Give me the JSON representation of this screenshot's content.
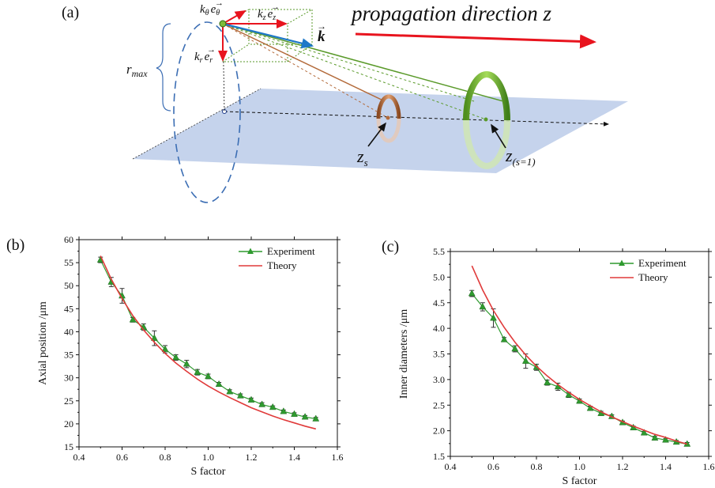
{
  "panel_a": {
    "label": "(a)",
    "propagation_text": "propagation direction z",
    "k_label": "k",
    "r_max_label": "r",
    "r_max_sub": "max",
    "k_theta_label": "k",
    "k_theta_sub": "θ",
    "e_theta_label": "e",
    "e_theta_sub": "θ",
    "k_z_label": "k",
    "k_z_sub": "z",
    "e_z_label": "e",
    "e_z_sub": "z",
    "k_r_label": "k",
    "k_r_sub": "r",
    "e_r_label": "e",
    "e_r_sub": "r",
    "z_s_label": "z",
    "z_s_sub": "s",
    "z_s1_label": "z",
    "z_s1_sub": "(s=1)",
    "colors": {
      "red": "#e8141e",
      "blue": "#1e78c8",
      "green": "#5a9a2a",
      "brown": "#b36a3a",
      "plane": "#c5d3ec",
      "dash_blue": "#3c6eb4"
    }
  },
  "chart_data": [
    {
      "panel_label": "(b)",
      "type": "line",
      "xlabel": "S factor",
      "ylabel": "Axial position /μm",
      "xlim": [
        0.4,
        1.6
      ],
      "ylim": [
        15,
        60
      ],
      "xticks": [
        0.4,
        0.6,
        0.8,
        1.0,
        1.2,
        1.4,
        1.6
      ],
      "xtick_labels": [
        "0.4",
        "0.6",
        "0.8",
        "1.0",
        "1.2",
        "1.4",
        "1.6"
      ],
      "yticks": [
        15,
        20,
        25,
        30,
        35,
        40,
        45,
        50,
        55,
        60
      ],
      "ytick_labels": [
        "15",
        "20",
        "25",
        "30",
        "35",
        "40",
        "45",
        "50",
        "55",
        "60"
      ],
      "legend_position": "top-right",
      "series": [
        {
          "name": "Experiment",
          "color": "#2f9a2f",
          "marker": "triangle",
          "x": [
            0.5,
            0.55,
            0.6,
            0.65,
            0.7,
            0.75,
            0.8,
            0.85,
            0.9,
            0.95,
            1.0,
            1.05,
            1.1,
            1.15,
            1.2,
            1.25,
            1.3,
            1.35,
            1.4,
            1.45,
            1.5
          ],
          "y": [
            55.6,
            50.8,
            47.8,
            42.6,
            41.0,
            38.6,
            36.2,
            34.4,
            33.0,
            31.2,
            30.3,
            28.6,
            27.0,
            26.1,
            25.2,
            24.2,
            23.6,
            22.7,
            22.1,
            21.5,
            21.1
          ],
          "err": [
            0.6,
            1.0,
            1.6,
            0.5,
            0.7,
            1.6,
            0.8,
            0.6,
            0.8,
            0.6,
            0.5,
            0.4,
            0.4,
            0.4,
            0.4,
            0.4,
            0.3,
            0.3,
            0.3,
            0.3,
            0.3
          ]
        },
        {
          "name": "Theory",
          "color": "#e03a3a",
          "x": [
            0.5,
            0.55,
            0.6,
            0.65,
            0.7,
            0.75,
            0.8,
            0.85,
            0.9,
            0.95,
            1.0,
            1.05,
            1.1,
            1.15,
            1.2,
            1.25,
            1.3,
            1.35,
            1.4,
            1.45,
            1.5
          ],
          "y": [
            56.5,
            51.4,
            47.2,
            43.5,
            40.4,
            37.7,
            35.3,
            33.2,
            31.4,
            29.7,
            28.2,
            26.9,
            25.7,
            24.6,
            23.5,
            22.6,
            21.7,
            20.9,
            20.2,
            19.5,
            18.9
          ]
        }
      ]
    },
    {
      "panel_label": "(c)",
      "type": "line",
      "xlabel": "S factor",
      "ylabel": "Inner diameters /μm",
      "xlim": [
        0.4,
        1.6
      ],
      "ylim": [
        1.5,
        5.5
      ],
      "xticks": [
        0.4,
        0.6,
        0.8,
        1.0,
        1.2,
        1.4,
        1.6
      ],
      "xtick_labels": [
        "0.4",
        "0.6",
        "0.8",
        "1.0",
        "1.2",
        "1.4",
        "1.6"
      ],
      "yticks": [
        1.5,
        2.0,
        2.5,
        3.0,
        3.5,
        4.0,
        4.5,
        5.0,
        5.5
      ],
      "ytick_labels": [
        "1.5",
        "2.0",
        "2.5",
        "3.0",
        "3.5",
        "4.0",
        "4.5",
        "5.0",
        "5.5"
      ],
      "legend_position": "top-right",
      "series": [
        {
          "name": "Experiment",
          "color": "#2f9a2f",
          "marker": "triangle",
          "x": [
            0.5,
            0.55,
            0.6,
            0.65,
            0.7,
            0.75,
            0.8,
            0.85,
            0.9,
            0.95,
            1.0,
            1.05,
            1.1,
            1.15,
            1.2,
            1.25,
            1.3,
            1.35,
            1.4,
            1.45,
            1.5
          ],
          "y": [
            4.68,
            4.42,
            4.2,
            3.78,
            3.6,
            3.36,
            3.24,
            2.94,
            2.86,
            2.7,
            2.58,
            2.44,
            2.34,
            2.28,
            2.16,
            2.06,
            1.96,
            1.86,
            1.82,
            1.78,
            1.74
          ],
          "err": [
            0.06,
            0.08,
            0.18,
            0.04,
            0.06,
            0.14,
            0.06,
            0.05,
            0.07,
            0.05,
            0.04,
            0.04,
            0.04,
            0.03,
            0.03,
            0.03,
            0.03,
            0.03,
            0.03,
            0.03,
            0.03
          ]
        },
        {
          "name": "Theory",
          "color": "#e03a3a",
          "x": [
            0.5,
            0.55,
            0.6,
            0.65,
            0.7,
            0.75,
            0.8,
            0.85,
            0.9,
            0.95,
            1.0,
            1.05,
            1.1,
            1.15,
            1.2,
            1.25,
            1.3,
            1.35,
            1.4,
            1.45,
            1.5
          ],
          "y": [
            5.22,
            4.75,
            4.35,
            4.02,
            3.73,
            3.48,
            3.26,
            3.07,
            2.9,
            2.75,
            2.61,
            2.49,
            2.37,
            2.27,
            2.18,
            2.09,
            2.01,
            1.93,
            1.87,
            1.8,
            1.74
          ]
        }
      ]
    }
  ]
}
